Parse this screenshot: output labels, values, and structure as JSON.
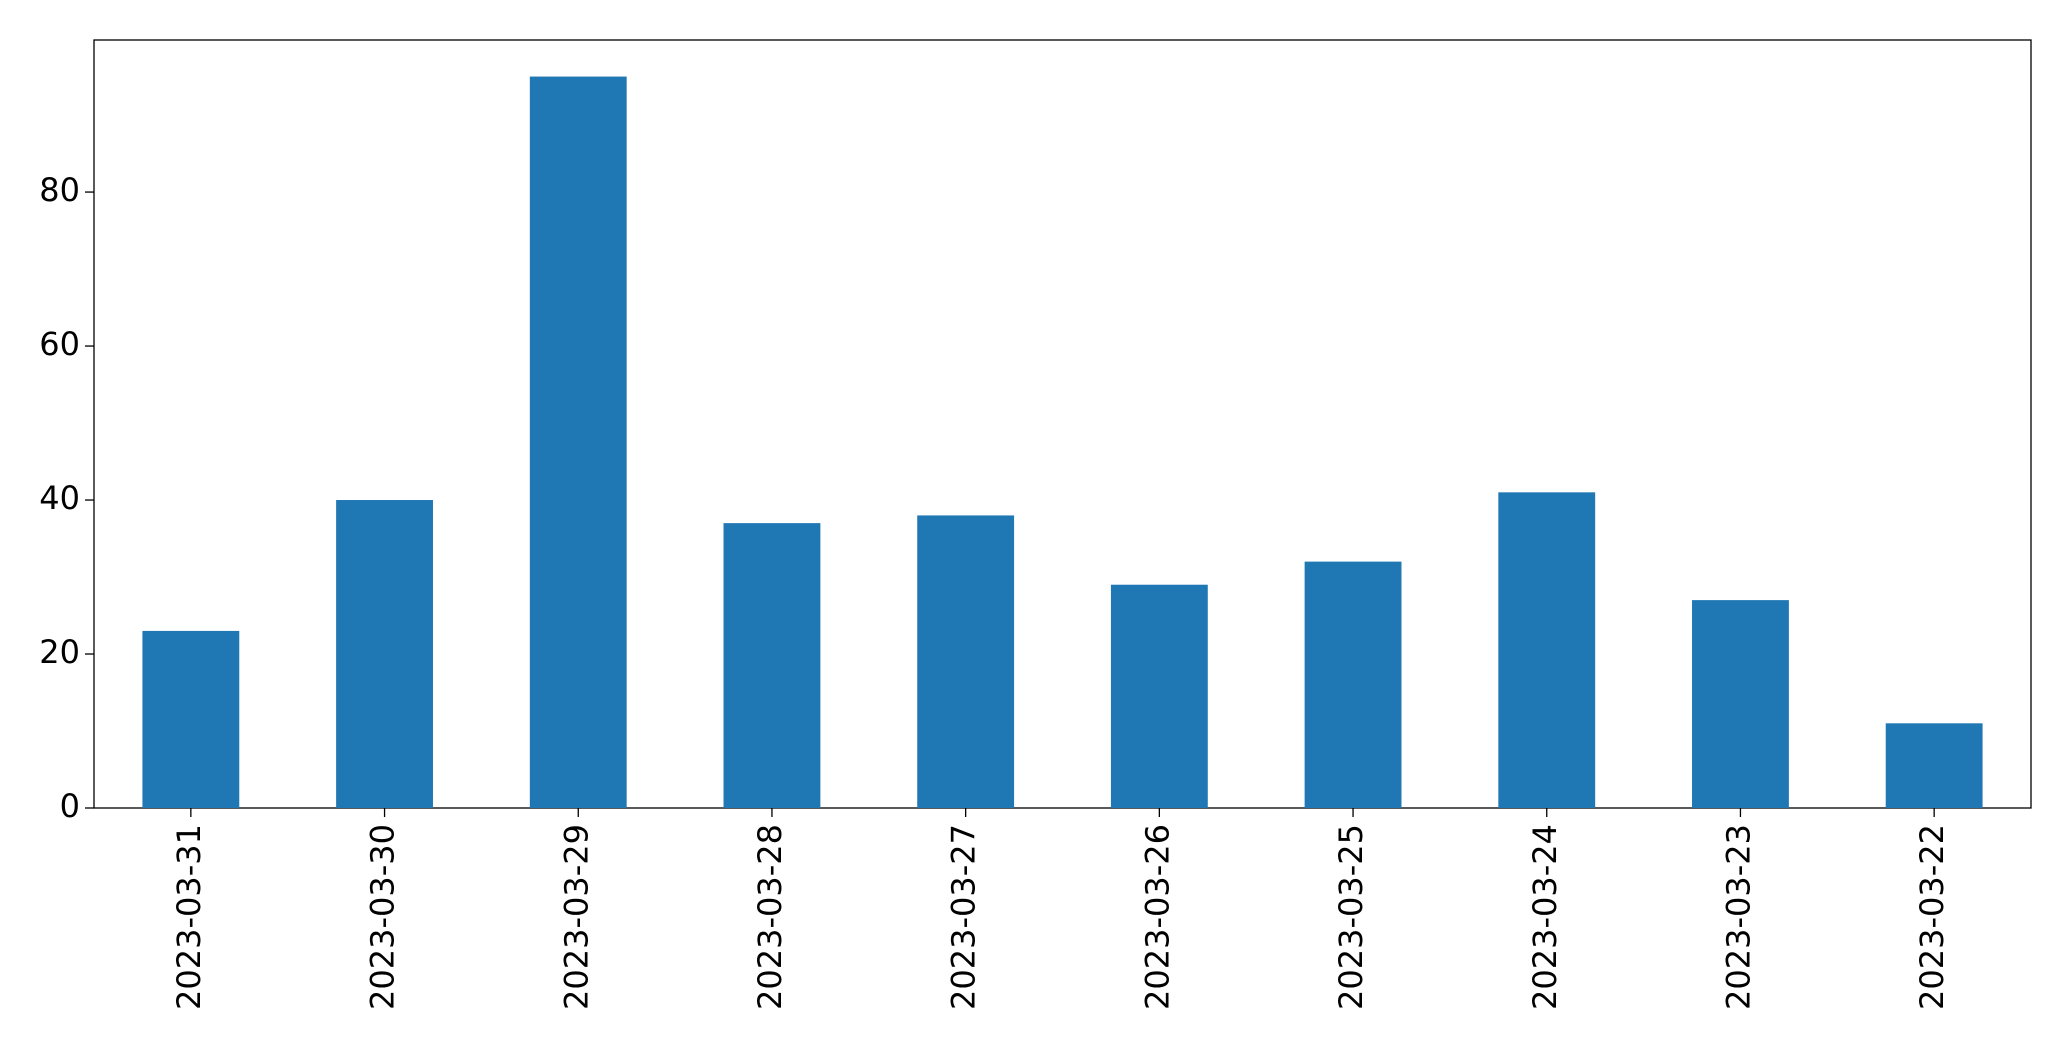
{
  "chart_data": {
    "type": "bar",
    "categories": [
      "2023-03-31",
      "2023-03-30",
      "2023-03-29",
      "2023-03-28",
      "2023-03-27",
      "2023-03-26",
      "2023-03-25",
      "2023-03-24",
      "2023-03-23",
      "2023-03-22"
    ],
    "values": [
      23,
      40,
      95,
      37,
      38,
      29,
      32,
      41,
      27,
      11
    ],
    "color": "#1f77b4",
    "ylim": [
      0,
      99.75
    ],
    "yticks": [
      0,
      20,
      40,
      60,
      80
    ],
    "grid": false
  }
}
